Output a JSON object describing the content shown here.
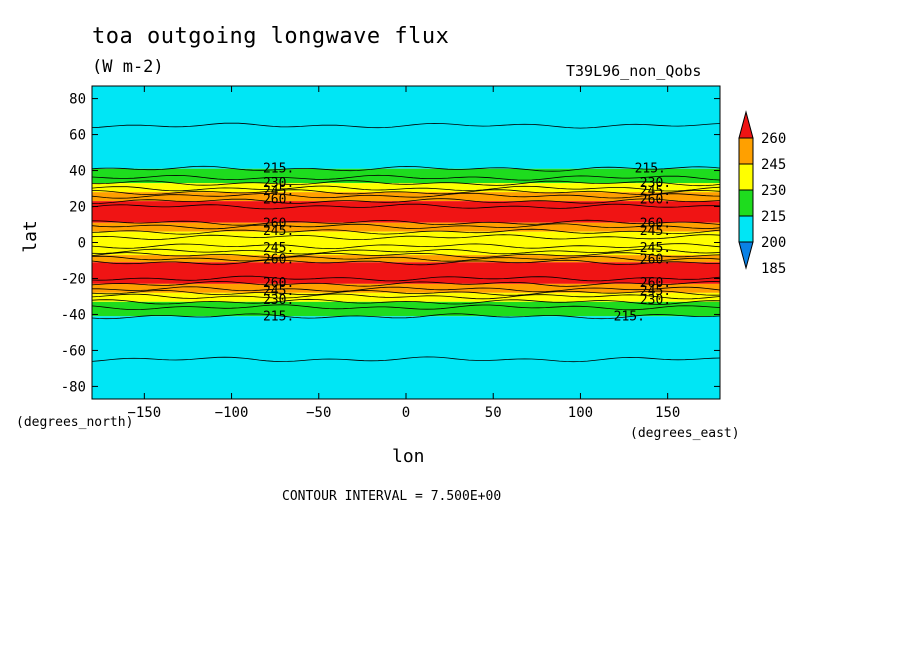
{
  "header": {
    "title": "toa outgoing longwave flux",
    "units": "(W m-2)",
    "run_label": "T39L96_non_Qobs",
    "contour_interval": "CONTOUR INTERVAL = 7.500E+00"
  },
  "chart_data": {
    "type": "heatmap",
    "title": "toa outgoing longwave flux",
    "subtitle": "(W m-2)",
    "xlabel": "lon",
    "ylabel": "lat",
    "x_units": "(degrees_east)",
    "y_units": "(degrees_north)",
    "xlim": [
      -180,
      180
    ],
    "ylim": [
      -87,
      87
    ],
    "x_ticks": [
      -150,
      -100,
      -50,
      0,
      50,
      100,
      150
    ],
    "y_ticks": [
      80,
      60,
      40,
      20,
      0,
      -20,
      -40,
      -60,
      -80
    ],
    "colorbar": {
      "levels": [
        185,
        200,
        215,
        230,
        245,
        260
      ],
      "colors": [
        "#0a82e6",
        "#00e6f5",
        "#1edc1e",
        "#ffff00",
        "#ffa000",
        "#f01414"
      ]
    },
    "zonal_bands": [
      {
        "lat_range": [
          41,
          87
        ],
        "color": "#00e6f5"
      },
      {
        "lat_range": [
          33,
          41
        ],
        "color": "#1edc1e"
      },
      {
        "lat_range": [
          28,
          33
        ],
        "color": "#ffff00"
      },
      {
        "lat_range": [
          23,
          28
        ],
        "color": "#ffa000"
      },
      {
        "lat_range": [
          11,
          23
        ],
        "color": "#f01414"
      },
      {
        "lat_range": [
          6,
          11
        ],
        "color": "#ffa000"
      },
      {
        "lat_range": [
          -7,
          6
        ],
        "color": "#ffff00"
      },
      {
        "lat_range": [
          -11,
          -7
        ],
        "color": "#ffa000"
      },
      {
        "lat_range": [
          -23,
          -11
        ],
        "color": "#f01414"
      },
      {
        "lat_range": [
          -28,
          -23
        ],
        "color": "#ffa000"
      },
      {
        "lat_range": [
          -33,
          -28
        ],
        "color": "#ffff00"
      },
      {
        "lat_range": [
          -41,
          -33
        ],
        "color": "#1edc1e"
      },
      {
        "lat_range": [
          -87,
          -41
        ],
        "color": "#00e6f5"
      }
    ],
    "contour_lats": [
      65,
      41,
      36,
      33,
      30,
      28,
      26,
      23,
      20,
      11,
      9,
      6,
      3,
      -2,
      -5,
      -7,
      -9,
      -11,
      -20,
      -23,
      -26,
      -28,
      -30,
      -33,
      -36,
      -41,
      -65
    ],
    "contour_labels": [
      {
        "text": "215.",
        "lat": 41,
        "lon": -73
      },
      {
        "text": "230.",
        "lat": 33,
        "lon": -73
      },
      {
        "text": "245.",
        "lat": 28.5,
        "lon": -73
      },
      {
        "text": "260.",
        "lat": 24,
        "lon": -73
      },
      {
        "text": "260.",
        "lat": 10.5,
        "lon": -73
      },
      {
        "text": "245.",
        "lat": 6.5,
        "lon": -73
      },
      {
        "text": "245.",
        "lat": -3,
        "lon": -73
      },
      {
        "text": "260.",
        "lat": -9.5,
        "lon": -73
      },
      {
        "text": "260.",
        "lat": -22.5,
        "lon": -73
      },
      {
        "text": "245.",
        "lat": -27,
        "lon": -73
      },
      {
        "text": "230.",
        "lat": -32,
        "lon": -73
      },
      {
        "text": "215.",
        "lat": -41,
        "lon": -73
      },
      {
        "text": "215.",
        "lat": 41,
        "lon": 140
      },
      {
        "text": "230.",
        "lat": 33,
        "lon": 143
      },
      {
        "text": "245.",
        "lat": 28.5,
        "lon": 143
      },
      {
        "text": "260.",
        "lat": 24,
        "lon": 143
      },
      {
        "text": "260.",
        "lat": 10.5,
        "lon": 143
      },
      {
        "text": "245.",
        "lat": 6.5,
        "lon": 143
      },
      {
        "text": "245.",
        "lat": -3,
        "lon": 143
      },
      {
        "text": "260.",
        "lat": -9.5,
        "lon": 143
      },
      {
        "text": "260.",
        "lat": -22.5,
        "lon": 143
      },
      {
        "text": "245.",
        "lat": -27,
        "lon": 143
      },
      {
        "text": "230.",
        "lat": -32,
        "lon": 143
      },
      {
        "text": "215.",
        "lat": -41,
        "lon": 128
      }
    ],
    "grid": false,
    "legend_placement": "right"
  }
}
